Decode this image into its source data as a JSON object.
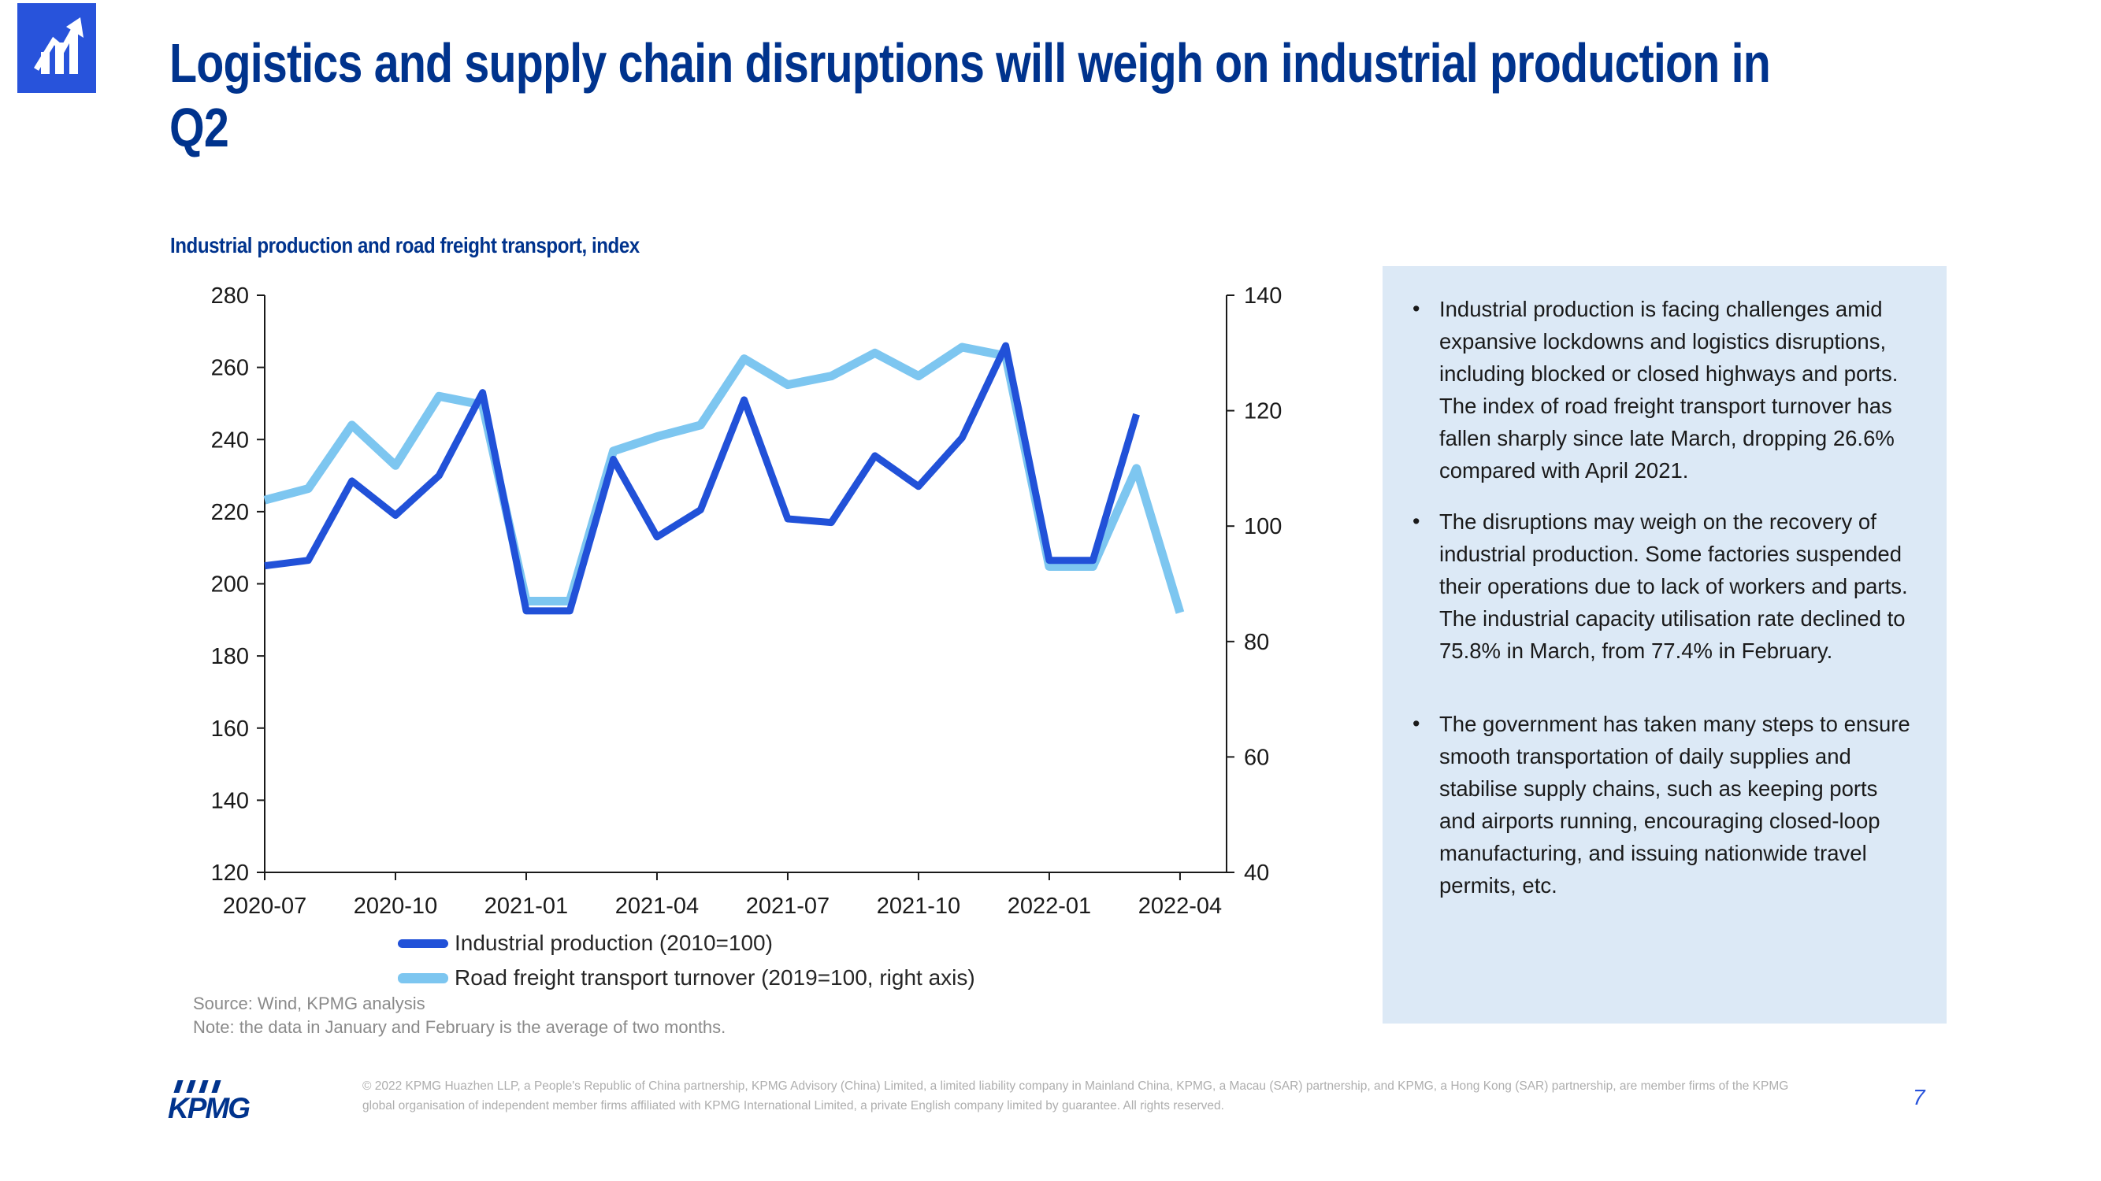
{
  "colors": {
    "title_blue": "#00338D",
    "logo_blue": "#2853DB",
    "panel_bg": "#DCE9F6",
    "industrial_line": "#2151D8",
    "freight_line": "#7DC6F0",
    "axis": "#1a1a1a"
  },
  "header": {
    "title": "Logistics and supply chain disruptions will weigh on industrial production in Q2",
    "logo_icon": "bar-chart-rising-arrow-icon"
  },
  "chart": {
    "heading": "Industrial production and road freight transport, index",
    "source": "Source: Wind, KPMG analysis",
    "note": "Note: the data in January and February is the average of two months."
  },
  "chart_data": {
    "type": "line",
    "title": "Industrial production and road freight transport, index",
    "x": [
      "2020-07",
      "2020-08",
      "2020-09",
      "2020-10",
      "2020-11",
      "2020-12",
      "2021-01",
      "2021-02",
      "2021-03",
      "2021-04",
      "2021-05",
      "2021-06",
      "2021-07",
      "2021-08",
      "2021-09",
      "2021-10",
      "2021-11",
      "2021-12",
      "2022-01",
      "2022-02",
      "2022-03",
      "2022-04"
    ],
    "x_tick_labels": [
      "2020-07",
      "2020-10",
      "2021-01",
      "2021-04",
      "2021-07",
      "2021-10",
      "2022-01",
      "2022-04"
    ],
    "left_axis": {
      "min": 120,
      "max": 280,
      "step": 20
    },
    "right_axis": {
      "min": 40,
      "max": 140,
      "step": 20
    },
    "grid": false,
    "legend_position": "bottom",
    "series": [
      {
        "name": "Industrial production (2010=100)",
        "axis": "left",
        "color": "#2151D8",
        "values": [
          205,
          206.5,
          228.5,
          219,
          230,
          253,
          192.5,
          192.5,
          234.5,
          213,
          220.5,
          251,
          218,
          217,
          235.5,
          227,
          240.5,
          266,
          206.5,
          206.5,
          247,
          null
        ]
      },
      {
        "name": "Road freight transport turnover (2019=100, right axis)",
        "axis": "right",
        "color": "#7DC6F0",
        "values": [
          104.5,
          106.5,
          117.5,
          110.5,
          122.5,
          121,
          87,
          87,
          113,
          115.5,
          117.5,
          129,
          124.5,
          126,
          130,
          126,
          131,
          129.5,
          93,
          93,
          110,
          85
        ]
      }
    ]
  },
  "panel": {
    "bullets": [
      "Industrial production is facing challenges amid expansive lockdowns and logistics disruptions, including blocked or closed highways and ports. The index of road freight transport turnover has fallen sharply since late March, dropping 26.6% compared with April 2021.",
      "The disruptions may weigh on the recovery of industrial production. Some factories suspended their operations due to lack of workers and parts. The industrial capacity utilisation rate declined to 75.8% in March, from 77.4% in February.",
      "The government has taken many steps to ensure smooth transportation of daily supplies and stabilise supply chains, such as keeping ports and airports running, encouraging closed-loop manufacturing, and issuing nationwide travel permits, etc."
    ]
  },
  "footer": {
    "brand": "KPMG",
    "copyright": "© 2022 KPMG Huazhen LLP, a People's Republic of China partnership, KPMG Advisory (China) Limited, a limited liability company in Mainland China, KPMG, a Macau (SAR) partnership, and KPMG, a Hong Kong (SAR) partnership, are member firms of the KPMG global organisation of independent member firms affiliated with KPMG International Limited, a private English company limited by guarantee. All rights reserved.",
    "page_number": "7"
  }
}
